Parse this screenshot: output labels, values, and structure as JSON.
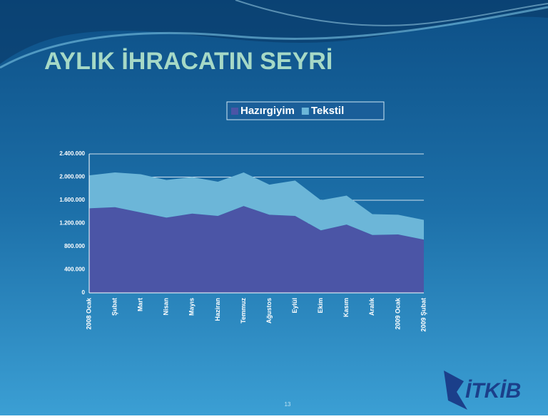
{
  "chart_data": {
    "type": "area",
    "title": "AYLIK İHRACATIN SEYRİ",
    "categories": [
      "2008 Ocak",
      "Şubat",
      "Mart",
      "Nisan",
      "Mayıs",
      "Haziran",
      "Temmuz",
      "Ağustos",
      "Eylül",
      "Ekim",
      "Kasım",
      "Aralık",
      "2009 Ocak",
      "2009 Şubat"
    ],
    "stacked": true,
    "series": [
      {
        "name": "Hazırgiyim",
        "color": "#4b55a6",
        "values": [
          1460000,
          1480000,
          1390000,
          1300000,
          1370000,
          1330000,
          1500000,
          1350000,
          1330000,
          1080000,
          1180000,
          1000000,
          1010000,
          920000
        ]
      },
      {
        "name": "Tekstil",
        "color": "#6cb6d8",
        "values": [
          570000,
          600000,
          660000,
          650000,
          630000,
          590000,
          580000,
          520000,
          610000,
          520000,
          500000,
          360000,
          340000,
          340000
        ]
      }
    ],
    "ylim": [
      0,
      2400000
    ],
    "yticks": [
      0,
      {
        "value": 400000,
        "label": "400.000"
      },
      {
        "value": 800000,
        "label": "800.000"
      },
      {
        "value": 1200000,
        "label": "1.200.000"
      },
      {
        "value": 1600000,
        "label": "1.600.000"
      },
      {
        "value": 2000000,
        "label": "2.000.000"
      },
      {
        "value": 2400000,
        "label": "2.400.000"
      }
    ],
    "grid": true,
    "legend": "top"
  },
  "slide": {
    "logo_text": "İTKİB",
    "page_number": "13"
  }
}
